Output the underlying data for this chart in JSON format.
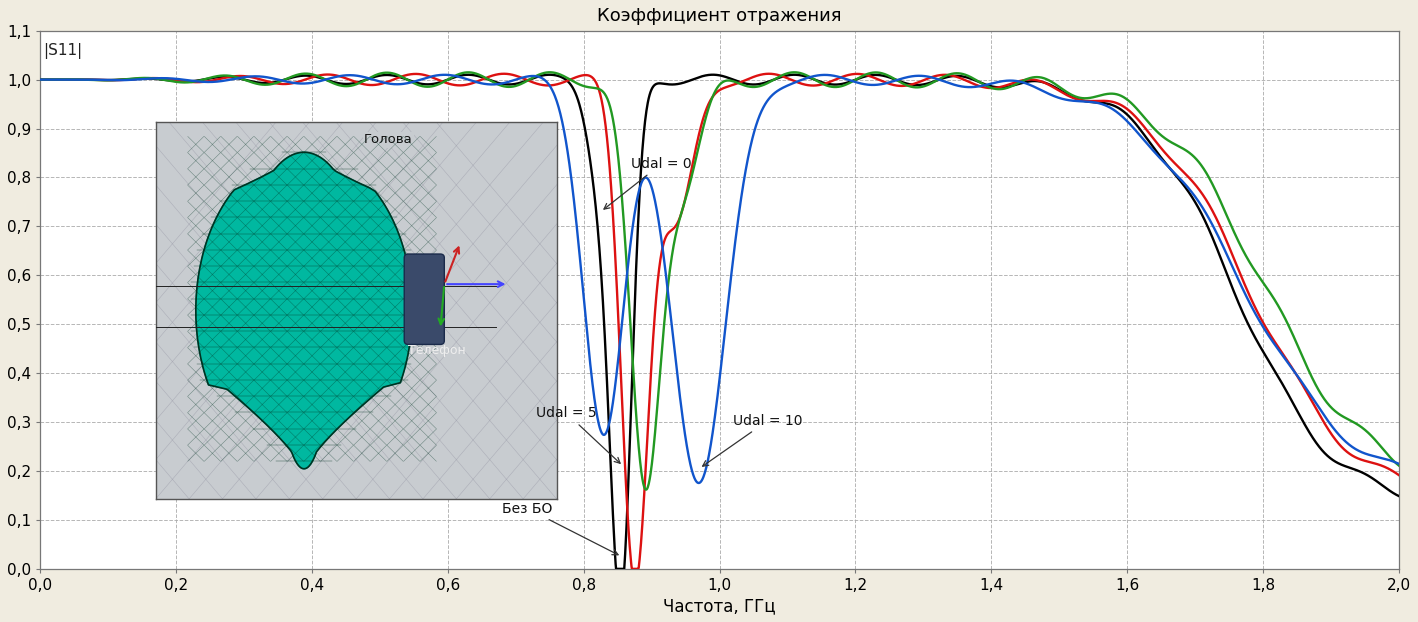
{
  "title": "Коэффициент отражения",
  "xlabel": "Частота, ГГц",
  "ylabel_label": "|S11|",
  "xlim": [
    0,
    2
  ],
  "ylim": [
    0,
    1.1
  ],
  "yticks": [
    0,
    0.1,
    0.2,
    0.3,
    0.4,
    0.5,
    0.6,
    0.7,
    0.8,
    0.9,
    1.0,
    1.1
  ],
  "xticks": [
    0,
    0.2,
    0.4,
    0.6,
    0.8,
    1.0,
    1.2,
    1.4,
    1.6,
    1.8,
    2.0
  ],
  "background_color": "#f0ece0",
  "plot_bg_color": "#ffffff",
  "grid_color": "#aaaaaa",
  "line_black_color": "#000000",
  "line_red_color": "#dd1111",
  "line_green_color": "#229922",
  "line_blue_color": "#1155cc",
  "line_lw": 1.7,
  "inset_bg": "#d8d8d8",
  "inset_head_color": "#00b8a0",
  "inset_head_dark": "#006655",
  "inset_mesh_color": "#003322",
  "annotation_fontsize": 10,
  "title_fontsize": 13,
  "tick_fontsize": 11,
  "xlabel_fontsize": 12
}
